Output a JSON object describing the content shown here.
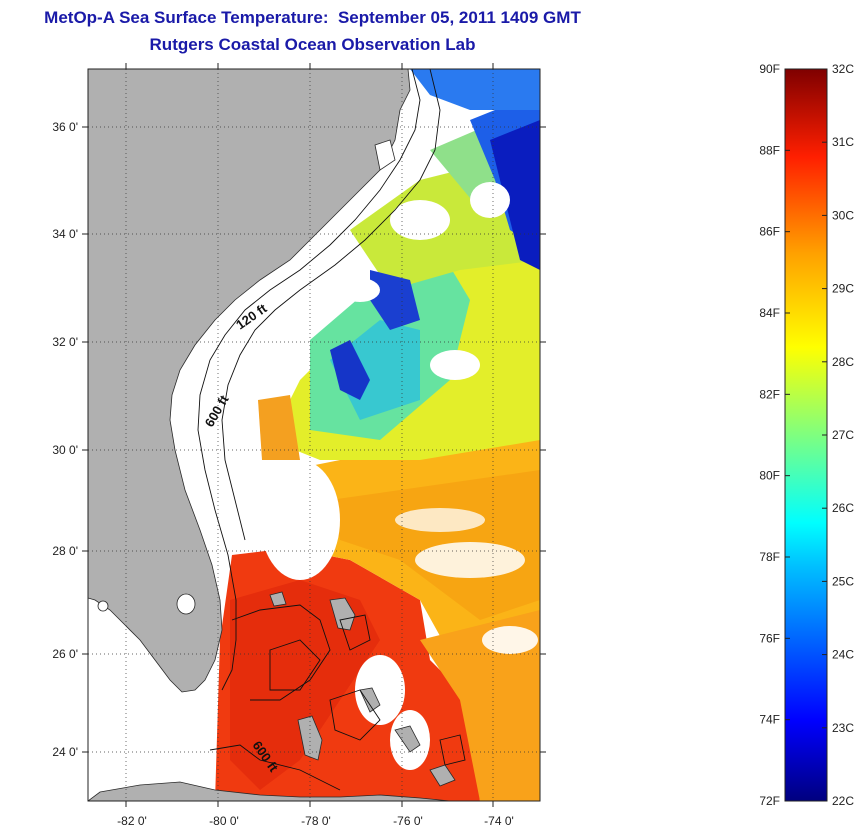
{
  "title_line1": "MetOp-A Sea Surface Temperature:  September 05, 2011 1409 GMT",
  "title_line2": "Rutgers Coastal Ocean Observation Lab",
  "lat_ticks": [
    "36 0'",
    "34 0'",
    "32 0'",
    "30 0'",
    "28 0'",
    "26 0'",
    "24 0'"
  ],
  "lon_ticks": [
    "-82 0'",
    "-80 0'",
    "-78 0'",
    "-76 0'",
    "-74 0'"
  ],
  "contour_labels": [
    "120 ft",
    "600 ft",
    "600 ft"
  ],
  "colorbar": {
    "f_labels": [
      "90F",
      "88F",
      "86F",
      "84F",
      "82F",
      "80F",
      "78F",
      "76F",
      "74F",
      "72F"
    ],
    "c_labels": [
      "32C",
      "31C",
      "30C",
      "29C",
      "28C",
      "27C",
      "26C",
      "25C",
      "24C",
      "23C",
      "22C"
    ],
    "colors": [
      "#00007f",
      "#0000ff",
      "#007fff",
      "#00ffff",
      "#7fff7f",
      "#ffff00",
      "#ff7f00",
      "#ff0000",
      "#7f0000"
    ]
  },
  "colors": {
    "title": "#1a1aa8",
    "land": "#b0b0b0",
    "cloud": "#ffffff"
  }
}
